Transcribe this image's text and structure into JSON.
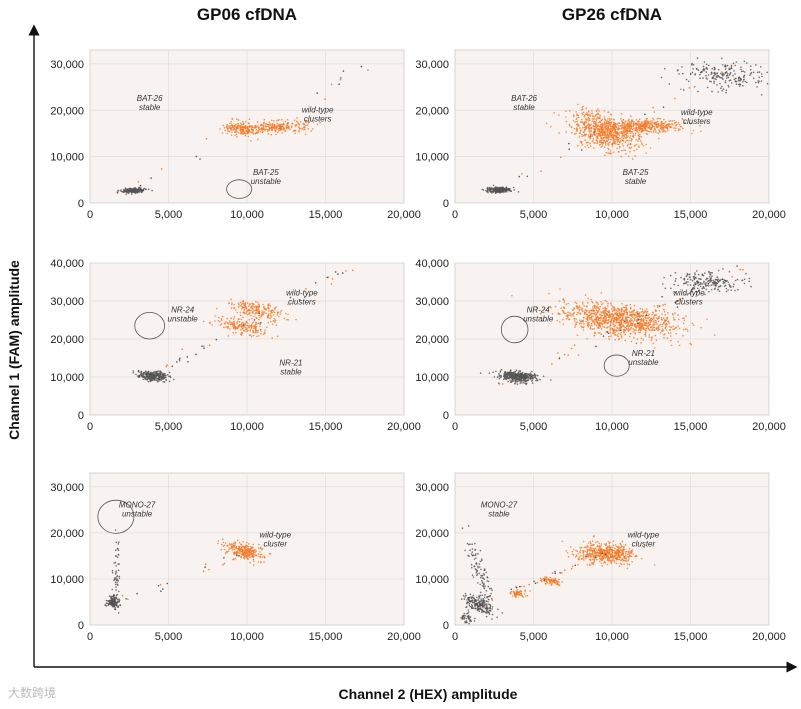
{
  "col_titles": [
    "GP06 cfDNA",
    "GP26 cfDNA"
  ],
  "watermark": "大数跨境",
  "colors": {
    "positive": "#f47b2a",
    "negative": "#555555",
    "panel_bg": "#f8f3f0",
    "grid": "#dddddd"
  },
  "chart_data": {
    "type": "scatter",
    "xlabel": "Channel 2 (HEX) amplitude",
    "ylabel": "Channel 1 (FAM) amplitude",
    "xlim": [
      0,
      20000
    ],
    "x_ticks": [
      0,
      5000,
      10000,
      15000,
      20000
    ],
    "x_tick_labels": [
      "0",
      "5,000",
      "10,000",
      "15,000",
      "20,000"
    ],
    "grid": true,
    "panels": [
      {
        "id": "gp06-row1",
        "sample": "GP06 cfDNA",
        "row": 1,
        "col": 1,
        "ylim": [
          0,
          33000
        ],
        "y_ticks": [
          0,
          10000,
          20000,
          30000
        ],
        "y_tick_labels": [
          "0",
          "10,000",
          "20,000",
          "30,000"
        ],
        "clusters": [
          {
            "type": "negative",
            "cx": 2800,
            "cy": 2700,
            "sx": 350,
            "sy": 250,
            "n": 250,
            "rot": 0.2
          },
          {
            "type": "positive",
            "cx": 9700,
            "cy": 15800,
            "sx": 550,
            "sy": 900,
            "n": 180,
            "rot": 0.3
          },
          {
            "type": "positive",
            "cx": 12000,
            "cy": 16400,
            "sx": 1000,
            "sy": 650,
            "n": 230,
            "rot": 0.15
          },
          {
            "type": "sparse",
            "x1": 3000,
            "y1": 3500,
            "x2": 18500,
            "y2": 30500,
            "n": 18
          }
        ],
        "annotations": [
          {
            "text": [
              "BAT-26",
              "stable"
            ],
            "x": 3800,
            "y": 22000
          },
          {
            "text": [
              "wild-type",
              "clusters"
            ],
            "x": 14500,
            "y": 19500
          },
          {
            "text": [
              "BAT-25",
              "unstable"
            ],
            "x": 11200,
            "y": 6000
          }
        ],
        "circles": [
          {
            "x": 9500,
            "y": 3000,
            "rx": 800,
            "ry": 2000
          }
        ]
      },
      {
        "id": "gp26-row1",
        "sample": "GP26 cfDNA",
        "row": 1,
        "col": 2,
        "ylim": [
          0,
          33000
        ],
        "y_ticks": [
          0,
          10000,
          20000,
          30000
        ],
        "y_tick_labels": [
          "0",
          "10,000",
          "20,000",
          "30,000"
        ],
        "clusters": [
          {
            "type": "negative",
            "cx": 2800,
            "cy": 2800,
            "sx": 400,
            "sy": 300,
            "n": 260,
            "rot": 0.2
          },
          {
            "type": "positive",
            "cx": 9500,
            "cy": 15500,
            "sx": 900,
            "sy": 2200,
            "n": 650,
            "rot": 0.25
          },
          {
            "type": "positive",
            "cx": 12000,
            "cy": 16500,
            "sx": 1300,
            "sy": 700,
            "n": 420,
            "rot": 0.1
          },
          {
            "type": "negative",
            "cx": 17000,
            "cy": 27500,
            "sx": 1300,
            "sy": 1700,
            "n": 200,
            "rot": 0.6
          },
          {
            "type": "sparse",
            "x1": 3000,
            "y1": 3500,
            "x2": 18000,
            "y2": 30000,
            "n": 28
          }
        ],
        "annotations": [
          {
            "text": [
              "BAT-26",
              "stable"
            ],
            "x": 4400,
            "y": 22000
          },
          {
            "text": [
              "wild-type",
              "clusters"
            ],
            "x": 15400,
            "y": 19000
          },
          {
            "text": [
              "BAT-25",
              "stable"
            ],
            "x": 11500,
            "y": 6000
          }
        ],
        "circles": []
      },
      {
        "id": "gp06-row2",
        "sample": "GP06 cfDNA",
        "row": 2,
        "col": 1,
        "ylim": [
          0,
          40000
        ],
        "y_ticks": [
          0,
          10000,
          20000,
          30000,
          40000
        ],
        "y_tick_labels": [
          "0",
          "10,000",
          "20,000",
          "30,000",
          "40,000"
        ],
        "clusters": [
          {
            "type": "negative",
            "cx": 4000,
            "cy": 10200,
            "sx": 450,
            "sy": 650,
            "n": 300,
            "rot": 0.4
          },
          {
            "type": "positive",
            "cx": 9800,
            "cy": 23200,
            "sx": 700,
            "sy": 1300,
            "n": 180,
            "rot": 0.4
          },
          {
            "type": "positive",
            "cx": 10700,
            "cy": 27500,
            "sx": 700,
            "sy": 1300,
            "n": 200,
            "rot": 0.4
          },
          {
            "type": "sparse",
            "x1": 3000,
            "y1": 8500,
            "x2": 16500,
            "y2": 38500,
            "n": 40
          }
        ],
        "annotations": [
          {
            "text": [
              "NR-24",
              "unstable"
            ],
            "x": 5900,
            "y": 27000
          },
          {
            "text": [
              "wild-type",
              "clusters"
            ],
            "x": 13500,
            "y": 31500
          },
          {
            "text": [
              "NR-21",
              "stable"
            ],
            "x": 12800,
            "y": 13000
          }
        ],
        "circles": [
          {
            "x": 3800,
            "y": 23500,
            "rx": 950,
            "ry": 3500
          }
        ]
      },
      {
        "id": "gp26-row2",
        "sample": "GP26 cfDNA",
        "row": 2,
        "col": 2,
        "ylim": [
          0,
          40000
        ],
        "y_ticks": [
          0,
          10000,
          20000,
          30000,
          40000
        ],
        "y_tick_labels": [
          "0",
          "10,000",
          "20,000",
          "30,000",
          "40,000"
        ],
        "clusters": [
          {
            "type": "negative",
            "cx": 4000,
            "cy": 10200,
            "sx": 550,
            "sy": 800,
            "n": 380,
            "rot": 0.4
          },
          {
            "type": "positive",
            "cx": 10500,
            "cy": 25000,
            "sx": 1500,
            "sy": 2500,
            "n": 1000,
            "rot": 0.5
          },
          {
            "type": "negative",
            "cx": 16000,
            "cy": 35000,
            "sx": 1100,
            "sy": 1200,
            "n": 200,
            "rot": 0.5
          },
          {
            "type": "sparse",
            "x1": 3000,
            "y1": 8000,
            "x2": 18500,
            "y2": 39000,
            "n": 55
          }
        ],
        "annotations": [
          {
            "text": [
              "NR-24",
              "unstable"
            ],
            "x": 5300,
            "y": 27000
          },
          {
            "text": [
              "wild-type",
              "clusters"
            ],
            "x": 14900,
            "y": 31500
          },
          {
            "text": [
              "NR-21",
              "unstable"
            ],
            "x": 12000,
            "y": 15500
          }
        ],
        "circles": [
          {
            "x": 3800,
            "y": 22500,
            "rx": 850,
            "ry": 3500
          },
          {
            "x": 10300,
            "y": 13000,
            "rx": 800,
            "ry": 2800
          }
        ]
      },
      {
        "id": "gp06-row3",
        "sample": "GP06 cfDNA",
        "row": 3,
        "col": 1,
        "ylim": [
          0,
          33000
        ],
        "y_ticks": [
          0,
          10000,
          20000,
          30000
        ],
        "y_tick_labels": [
          "0",
          "10,000",
          "20,000",
          "30,000"
        ],
        "clusters": [
          {
            "type": "negative",
            "cx": 1500,
            "cy": 5000,
            "sx": 180,
            "sy": 600,
            "n": 160,
            "rot": 0
          },
          {
            "type": "negative",
            "cx": 1700,
            "cy": 11000,
            "sx": 120,
            "sy": 3500,
            "n": 50,
            "rot": 0
          },
          {
            "type": "positive",
            "cx": 9800,
            "cy": 16000,
            "sx": 500,
            "sy": 1000,
            "n": 260,
            "rot": 0.4
          },
          {
            "type": "sparse",
            "x1": 1800,
            "y1": 5500,
            "x2": 9500,
            "y2": 15000,
            "n": 20
          }
        ],
        "annotations": [
          {
            "text": [
              "MONO-27",
              "unstable"
            ],
            "x": 3000,
            "y": 25500
          },
          {
            "text": [
              "wild-type",
              "cluster"
            ],
            "x": 11800,
            "y": 19000
          }
        ],
        "circles": [
          {
            "x": 1650,
            "y": 23500,
            "rx": 1150,
            "ry": 3600
          }
        ]
      },
      {
        "id": "gp26-row3",
        "sample": "GP26 cfDNA",
        "row": 3,
        "col": 2,
        "ylim": [
          0,
          33000
        ],
        "y_ticks": [
          0,
          10000,
          20000,
          30000
        ],
        "y_tick_labels": [
          "0",
          "10,000",
          "20,000",
          "30,000"
        ],
        "clusters": [
          {
            "type": "negative",
            "cx": 1500,
            "cy": 4500,
            "sx": 350,
            "sy": 1200,
            "n": 200,
            "rot": 0.3
          },
          {
            "type": "negative",
            "cx": 1500,
            "cy": 12000,
            "sx": 250,
            "sy": 4000,
            "n": 100,
            "rot": 0.1
          },
          {
            "type": "negative",
            "cx": 800,
            "cy": 1500,
            "sx": 250,
            "sy": 600,
            "n": 40,
            "rot": 0
          },
          {
            "type": "positive",
            "cx": 4000,
            "cy": 6800,
            "sx": 250,
            "sy": 350,
            "n": 60,
            "rot": 0.2
          },
          {
            "type": "positive",
            "cx": 6100,
            "cy": 9500,
            "sx": 250,
            "sy": 500,
            "n": 80,
            "rot": 0.4
          },
          {
            "type": "positive",
            "cx": 9600,
            "cy": 15500,
            "sx": 900,
            "sy": 1100,
            "n": 500,
            "rot": 0.5
          },
          {
            "type": "sparse",
            "x1": 1500,
            "y1": 5000,
            "x2": 10000,
            "y2": 16000,
            "n": 30
          }
        ],
        "annotations": [
          {
            "text": [
              "MONO-27",
              "stable"
            ],
            "x": 2800,
            "y": 25500
          },
          {
            "text": [
              "wild-type",
              "cluster"
            ],
            "x": 12000,
            "y": 19000
          }
        ],
        "circles": []
      }
    ]
  }
}
